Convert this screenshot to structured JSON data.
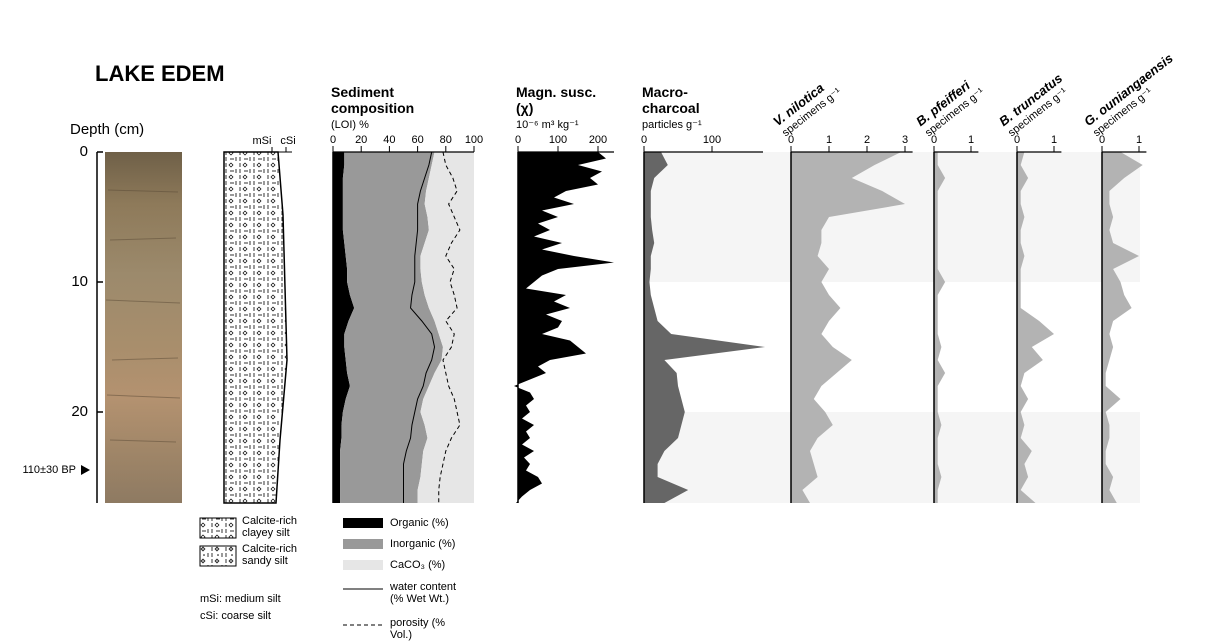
{
  "title": "LAKE EDEM",
  "depth_axis": {
    "label": "Depth (cm)",
    "ylim": [
      0,
      27
    ],
    "yticks": [
      0,
      10,
      20
    ]
  },
  "annotation": "110±30 BP",
  "lithology": {
    "columns": [
      "mSi",
      "cSi"
    ],
    "legend": [
      {
        "label": "Calcite-rich clayey silt"
      },
      {
        "label": "Calcite-rich sandy silt"
      }
    ],
    "notes": [
      "mSi: medium silt",
      "cSi: coarse silt"
    ]
  },
  "chart_data": [
    {
      "type": "stacked-area",
      "title": "Sediment composition",
      "subtitle": "(LOI) %",
      "depth": [
        0,
        1,
        2,
        3,
        4,
        5,
        6,
        7,
        8,
        9,
        10,
        11,
        12,
        13,
        14,
        15,
        16,
        17,
        18,
        19,
        20,
        21,
        22,
        23,
        24,
        25,
        26,
        27
      ],
      "series": [
        {
          "name": "Organic (%)",
          "color": "#000000",
          "values": [
            8,
            8,
            7,
            7,
            7,
            7,
            7,
            8,
            9,
            10,
            10,
            12,
            15,
            11,
            8,
            8,
            9,
            10,
            12,
            9,
            7,
            6,
            6,
            5,
            5,
            5,
            5,
            5
          ]
        },
        {
          "name": "Inorganic (%)",
          "color": "#999999",
          "values": [
            64,
            62,
            61,
            59,
            58,
            60,
            61,
            57,
            53,
            52,
            53,
            53,
            53,
            61,
            67,
            70,
            68,
            62,
            56,
            55,
            55,
            59,
            61,
            59,
            58,
            57,
            55,
            55
          ]
        },
        {
          "name": "CaCO₃ (%)",
          "color": "#e6e6e6",
          "values": [
            28,
            30,
            32,
            34,
            35,
            33,
            32,
            35,
            38,
            38,
            37,
            35,
            32,
            28,
            25,
            22,
            23,
            28,
            32,
            36,
            38,
            35,
            33,
            36,
            37,
            38,
            40,
            40
          ]
        }
      ],
      "lines": [
        {
          "name": "water content (% Wet Wt.)",
          "color": "#000000",
          "dash": false,
          "values": [
            70,
            68,
            65,
            62,
            60,
            60,
            60,
            59,
            58,
            58,
            58,
            56,
            55,
            63,
            70,
            72,
            70,
            66,
            64,
            60,
            58,
            56,
            55,
            52,
            50,
            50,
            50,
            50
          ]
        },
        {
          "name": "porosity (% Vol.)",
          "color": "#000000",
          "dash": true,
          "values": [
            78,
            80,
            85,
            88,
            82,
            86,
            90,
            84,
            80,
            86,
            83,
            86,
            88,
            80,
            86,
            84,
            78,
            80,
            82,
            86,
            88,
            90,
            84,
            80,
            78,
            76,
            75,
            75
          ]
        }
      ],
      "xlim": [
        0,
        100
      ],
      "xticks": [
        0,
        20,
        40,
        60,
        80,
        100
      ]
    },
    {
      "type": "area",
      "title": "Magn. susc. (χ)",
      "subtitle": "10⁻⁶ m³ kg⁻¹",
      "depth": [
        0,
        0.5,
        1,
        1.5,
        2,
        2.5,
        3,
        3.5,
        4,
        4.5,
        5,
        5.5,
        6,
        6.5,
        7,
        7.5,
        8,
        8.5,
        9,
        9.5,
        10,
        10.5,
        11,
        11.5,
        12,
        12.5,
        13,
        13.5,
        14,
        14.5,
        15,
        15.5,
        16,
        16.5,
        17,
        17.5,
        18,
        18.5,
        19,
        19.5,
        20,
        20.5,
        21,
        21.5,
        22,
        22.5,
        23,
        23.5,
        24,
        24.5,
        25,
        25.5,
        26,
        26.5,
        27
      ],
      "values": [
        200,
        220,
        150,
        210,
        180,
        200,
        120,
        90,
        140,
        60,
        100,
        50,
        80,
        40,
        110,
        60,
        140,
        240,
        100,
        60,
        40,
        20,
        120,
        90,
        130,
        70,
        110,
        100,
        60,
        130,
        150,
        170,
        80,
        50,
        70,
        30,
        -10,
        30,
        40,
        20,
        30,
        10,
        40,
        20,
        30,
        10,
        40,
        15,
        30,
        20,
        50,
        60,
        30,
        10,
        -5
      ],
      "color": "#000000",
      "xlim": [
        0,
        240
      ],
      "xticks": [
        0,
        100,
        200
      ]
    },
    {
      "type": "area",
      "title": "Macro-charcoal",
      "subtitle": "particles g⁻¹",
      "depth": [
        0,
        1,
        2,
        3,
        4,
        5,
        6,
        7,
        8,
        9,
        10,
        11,
        12,
        13,
        14,
        15,
        16,
        17,
        18,
        19,
        20,
        21,
        22,
        23,
        24,
        25,
        26,
        27
      ],
      "values": [
        25,
        35,
        15,
        10,
        10,
        10,
        12,
        15,
        10,
        10,
        8,
        10,
        15,
        20,
        40,
        178,
        30,
        48,
        50,
        55,
        60,
        55,
        50,
        30,
        20,
        20,
        65,
        30
      ],
      "color": "#666666",
      "xlim": [
        0,
        175
      ],
      "xticks": [
        0,
        100
      ]
    },
    {
      "type": "area",
      "title": "V. nilotica",
      "subtitle": "specimens g⁻¹",
      "depth": [
        0,
        1,
        2,
        3,
        4,
        5,
        6,
        7,
        8,
        9,
        10,
        11,
        12,
        13,
        14,
        15,
        16,
        17,
        18,
        19,
        20,
        21,
        22,
        23,
        24,
        25,
        26,
        27
      ],
      "values": [
        2.9,
        2.2,
        1.6,
        2.4,
        3.0,
        1.0,
        0.8,
        0.8,
        0.7,
        1.0,
        0.8,
        1.0,
        1.3,
        1.0,
        0.8,
        1.1,
        1.6,
        1.2,
        0.8,
        0.6,
        0.9,
        1.1,
        0.7,
        0.5,
        0.6,
        0.7,
        0.3,
        0.5
      ],
      "color": "#b3b3b3",
      "xlim": [
        0,
        3.2
      ],
      "xticks": [
        0,
        1,
        2,
        3
      ]
    },
    {
      "type": "area",
      "title": "B. pfeifferi",
      "subtitle": "specimens g⁻¹",
      "depth": [
        0,
        1,
        2,
        3,
        4,
        5,
        6,
        7,
        8,
        9,
        10,
        11,
        12,
        13,
        14,
        15,
        16,
        17,
        18,
        19,
        20,
        21,
        22,
        23,
        24,
        25,
        26,
        27
      ],
      "values": [
        0.1,
        0.1,
        0.3,
        0.1,
        0.1,
        0.1,
        0.1,
        0.1,
        0.1,
        0.1,
        0.3,
        0.1,
        0.1,
        0.1,
        0.1,
        0.2,
        0.1,
        0.3,
        0.1,
        0.1,
        0.1,
        0.2,
        0.1,
        0.1,
        0.1,
        0.2,
        0.1,
        0.1
      ],
      "color": "#b3b3b3",
      "xlim": [
        0,
        1.2
      ],
      "xticks": [
        0,
        1
      ]
    },
    {
      "type": "area",
      "title": "B. truncatus",
      "subtitle": "specimens g⁻¹",
      "depth": [
        0,
        1,
        2,
        3,
        4,
        5,
        6,
        7,
        8,
        9,
        10,
        11,
        12,
        13,
        14,
        15,
        16,
        17,
        18,
        19,
        20,
        21,
        22,
        23,
        24,
        25,
        26,
        27
      ],
      "values": [
        0.2,
        0.1,
        0.3,
        0.1,
        0.1,
        0.2,
        0.1,
        0.1,
        0.2,
        0.1,
        0.1,
        0.1,
        0.1,
        0.6,
        1.0,
        0.4,
        0.7,
        0.2,
        0.1,
        0.3,
        0.1,
        0.2,
        0.1,
        0.4,
        0.2,
        0.3,
        0.1,
        0.5
      ],
      "color": "#b3b3b3",
      "xlim": [
        0,
        1.2
      ],
      "xticks": [
        0,
        1
      ]
    },
    {
      "type": "area",
      "title": "G. ouniangaensis",
      "subtitle": "specimens g⁻¹",
      "depth": [
        0,
        1,
        2,
        3,
        4,
        5,
        6,
        7,
        8,
        9,
        10,
        11,
        12,
        13,
        14,
        15,
        16,
        17,
        18,
        19,
        20,
        21,
        22,
        23,
        24,
        25,
        26,
        27
      ],
      "values": [
        0.5,
        1.1,
        0.6,
        0.2,
        0.2,
        0.3,
        0.2,
        0.3,
        1.0,
        0.3,
        0.5,
        0.6,
        0.8,
        0.3,
        0.2,
        0.3,
        0.2,
        0.1,
        0.1,
        0.5,
        0.1,
        0.2,
        0.2,
        0.1,
        0.1,
        0.3,
        0.2,
        0.4
      ],
      "color": "#b3b3b3",
      "xlim": [
        0,
        1.2
      ],
      "xticks": [
        0,
        1
      ]
    }
  ]
}
